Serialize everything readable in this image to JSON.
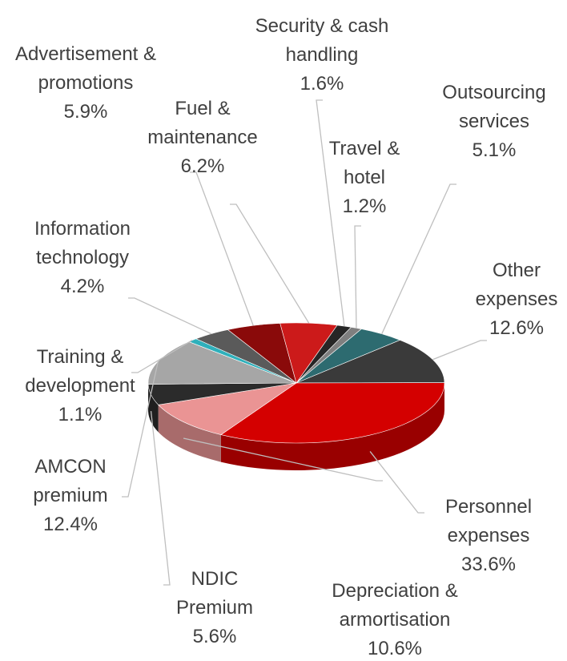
{
  "chart_data": {
    "type": "pie3d",
    "categories": [
      "Security & cash handling",
      "Travel & hotel",
      "Outsourcing services",
      "Other expenses",
      "Personnel expenses",
      "Depreciation & armortisation",
      "NDIC Premium",
      "AMCON premium",
      "Training & development",
      "Information technology",
      "Advertisement & promotions",
      "Fuel & maintenance"
    ],
    "values": [
      1.6,
      1.2,
      5.1,
      12.6,
      33.6,
      10.6,
      5.6,
      12.4,
      1.1,
      4.2,
      5.9,
      6.2
    ],
    "value_labels": [
      "1.6%",
      "1.2%",
      "5.1%",
      "12.6%",
      "33.6%",
      "10.6%",
      "5.6%",
      "12.4%",
      "1.1%",
      "4.2%",
      "5.9%",
      "6.2%"
    ],
    "colors": [
      "#262626",
      "#7f7f7f",
      "#2d6b70",
      "#3a3a3a",
      "#d40000",
      "#ea9494",
      "#2b2b2b",
      "#a6a6a6",
      "#2fb0bb",
      "#5a5a5a",
      "#8a0a0a",
      "#cc1a1a"
    ]
  }
}
